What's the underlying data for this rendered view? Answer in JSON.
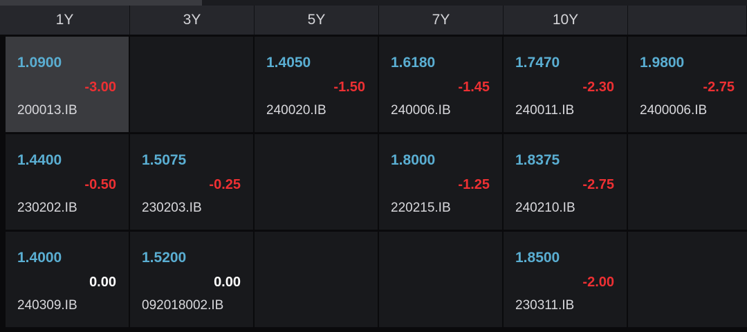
{
  "header": {
    "tenors": [
      "1Y",
      "3Y",
      "5Y",
      "7Y",
      "10Y",
      ""
    ]
  },
  "colors": {
    "price": "#5aaed2",
    "negative_change": "#ee3033",
    "zero_change": "#ffffff",
    "cell_bg": "#18191c",
    "selected_bg": "#3a3b3f"
  },
  "rows": [
    [
      {
        "price": "1.0900",
        "change": "-3.00",
        "code": "200013.IB",
        "selected": true
      },
      null,
      {
        "price": "1.4050",
        "change": "-1.50",
        "code": "240020.IB"
      },
      {
        "price": "1.6180",
        "change": "-1.45",
        "code": "240006.IB"
      },
      {
        "price": "1.7470",
        "change": "-2.30",
        "code": "240011.IB"
      },
      {
        "price": "1.9800",
        "change": "-2.75",
        "code": "2400006.IB"
      }
    ],
    [
      {
        "price": "1.4400",
        "change": "-0.50",
        "code": "230202.IB"
      },
      {
        "price": "1.5075",
        "change": "-0.25",
        "code": "230203.IB"
      },
      null,
      {
        "price": "1.8000",
        "change": "-1.25",
        "code": "220215.IB"
      },
      {
        "price": "1.8375",
        "change": "-2.75",
        "code": "240210.IB"
      },
      null
    ],
    [
      {
        "price": "1.4000",
        "change": "0.00",
        "code": "240309.IB"
      },
      {
        "price": "1.5200",
        "change": "0.00",
        "code": "092018002.IB"
      },
      null,
      null,
      {
        "price": "1.8500",
        "change": "-2.00",
        "code": "230311.IB"
      },
      null
    ]
  ]
}
